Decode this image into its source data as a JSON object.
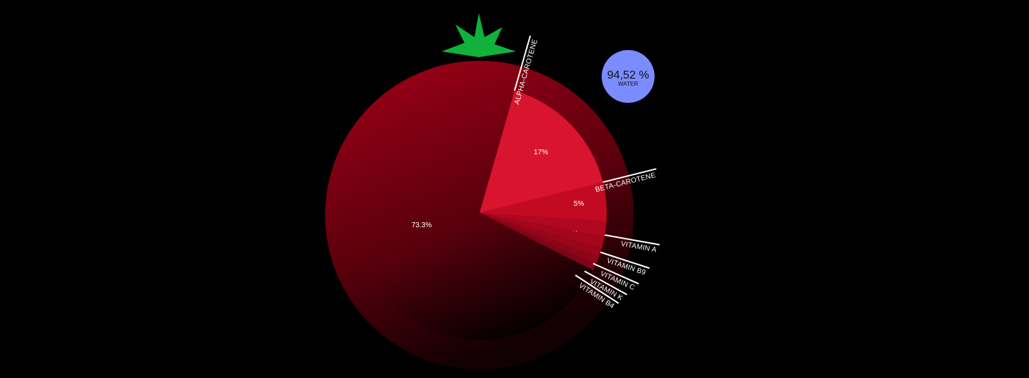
{
  "chart_data": {
    "type": "pie",
    "slices": [
      {
        "label": "",
        "value": 73.3,
        "value_label": "73.3%"
      },
      {
        "label": "ALPHA-CAROTENE",
        "value": 17,
        "value_label": "17%"
      },
      {
        "label": "BETA-CAROTENE",
        "value": 5,
        "value_label": "5%"
      },
      {
        "label": "VITAMIN A",
        "value": 2,
        "value_label": "2%"
      },
      {
        "label": "VITAMIN B9",
        "value": 1.5,
        "value_label": ""
      },
      {
        "label": "VITAMIN C",
        "value": 1.2,
        "value_label": ""
      },
      {
        "label": "VITAMIN K",
        "value": 1.0,
        "value_label": ""
      },
      {
        "label": "VITAMIN B4",
        "value": 0.8,
        "value_label": ""
      }
    ],
    "water": {
      "value": "94,52 %",
      "label": "WATER"
    },
    "colors": {
      "background": "#000000",
      "tomato_outer": "#8a0014",
      "main_slice": "#7a0012",
      "alpha_slice": "#d8142e",
      "beta_slice": "#c20a22",
      "vitamin_slices": "#b00820",
      "leaf": "#10b23c",
      "water_circle": "#7b8cff",
      "label_line": "#ffffff"
    }
  }
}
